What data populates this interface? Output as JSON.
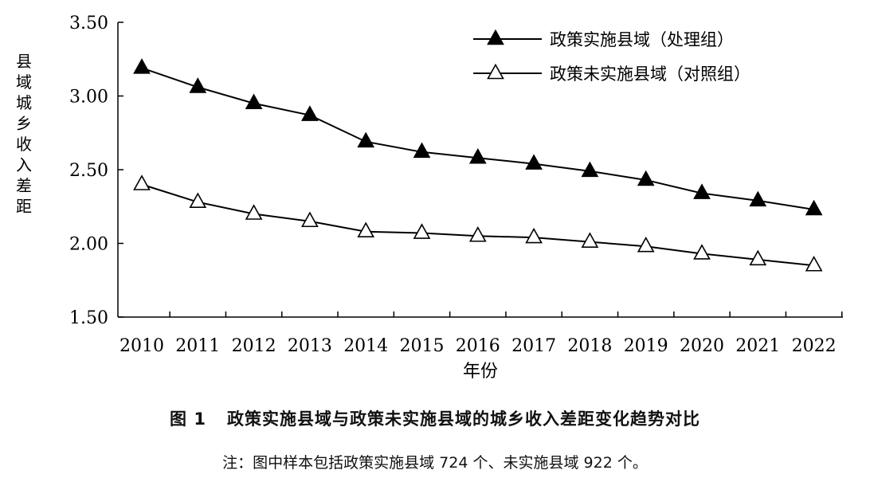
{
  "chart_data": {
    "type": "line",
    "figure_number": "图 1",
    "title": "政策实施县域与政策未实施县域的城乡收入差距变化趋势对比",
    "note": "注：图中样本包括政策实施县域 724 个、未实施县域 922 个。",
    "xlabel": "年份",
    "ylabel": "县域城乡收入差距",
    "ylim": [
      1.5,
      3.5
    ],
    "yticks": [
      "1.50",
      "2.00",
      "2.50",
      "3.00",
      "3.50"
    ],
    "grid": false,
    "legend_position": "top-right",
    "x": [
      "2010",
      "2011",
      "2012",
      "2013",
      "2014",
      "2015",
      "2016",
      "2017",
      "2018",
      "2019",
      "2020",
      "2021",
      "2022"
    ],
    "series": [
      {
        "name": "政策实施县域（处理组）",
        "marker": "filled-triangle",
        "color": "#000000",
        "values": [
          3.19,
          3.06,
          2.95,
          2.87,
          2.69,
          2.62,
          2.58,
          2.54,
          2.49,
          2.43,
          2.34,
          2.29,
          2.23
        ]
      },
      {
        "name": "政策未实施县域（对照组）",
        "marker": "hollow-triangle",
        "color": "#000000",
        "values": [
          2.4,
          2.28,
          2.2,
          2.15,
          2.08,
          2.07,
          2.05,
          2.04,
          2.01,
          1.98,
          1.93,
          1.89,
          1.85
        ]
      }
    ]
  }
}
